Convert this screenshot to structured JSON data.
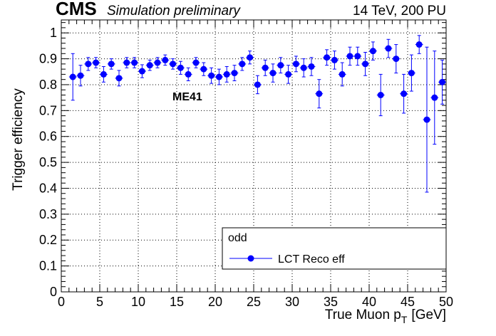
{
  "header": {
    "experiment": "CMS",
    "extra_text": "Simulation preliminary",
    "lumi_text": "14 TeV, 200 PU"
  },
  "annotation": "ME41",
  "legend": {
    "header": "odd",
    "entries": [
      "LCT Reco eff"
    ]
  },
  "colors": {
    "series": "#0000ff",
    "grid": "#000000",
    "frame": "#000000"
  },
  "chart_data": {
    "type": "scatter",
    "xlabel_main": "True Muon p",
    "xlabel_sub": "T",
    "xlabel_unit": "[GeV]",
    "ylabel": "Trigger efficiency",
    "xlim": [
      0,
      50
    ],
    "ylim": [
      0,
      1.05
    ],
    "xticks": [
      0,
      5,
      10,
      15,
      20,
      25,
      30,
      35,
      40,
      45,
      50
    ],
    "yticks": [
      0,
      0.1,
      0.2,
      0.3,
      0.4,
      0.5,
      0.6,
      0.7,
      0.8,
      0.9,
      1
    ],
    "ytick_labels": [
      "0",
      "0.1",
      "0.2",
      "0.3",
      "0.4",
      "0.5",
      "0.6",
      "0.7",
      "0.8",
      "0.9",
      "1"
    ],
    "grid": true,
    "legend_position": "bottom-right",
    "series": [
      {
        "name": "LCT Reco eff",
        "marker": "circle",
        "x": [
          1.5,
          2.5,
          3.5,
          4.5,
          5.5,
          6.5,
          7.5,
          8.5,
          9.5,
          10.5,
          11.5,
          12.5,
          13.5,
          14.5,
          15.5,
          16.5,
          17.5,
          18.5,
          19.5,
          20.5,
          21.5,
          22.5,
          23.5,
          24.5,
          25.5,
          26.5,
          27.5,
          28.5,
          29.5,
          30.5,
          31.5,
          32.5,
          33.5,
          34.5,
          35.5,
          36.5,
          37.5,
          38.5,
          39.5,
          40.5,
          41.5,
          42.5,
          43.5,
          44.5,
          45.5,
          46.5,
          47.5,
          48.5,
          49.5
        ],
        "y": [
          0.83,
          0.835,
          0.88,
          0.885,
          0.84,
          0.88,
          0.825,
          0.885,
          0.885,
          0.852,
          0.875,
          0.885,
          0.895,
          0.88,
          0.865,
          0.84,
          0.885,
          0.86,
          0.835,
          0.83,
          0.84,
          0.845,
          0.88,
          0.905,
          0.8,
          0.865,
          0.845,
          0.875,
          0.84,
          0.88,
          0.865,
          0.87,
          0.765,
          0.905,
          0.895,
          0.84,
          0.91,
          0.91,
          0.88,
          0.93,
          0.76,
          0.94,
          0.9,
          0.765,
          0.845,
          0.955,
          0.665,
          0.75,
          0.81
        ],
        "err": [
          0.09,
          0.04,
          0.025,
          0.02,
          0.03,
          0.02,
          0.03,
          0.02,
          0.02,
          0.025,
          0.02,
          0.02,
          0.02,
          0.02,
          0.025,
          0.025,
          0.02,
          0.025,
          0.03,
          0.03,
          0.03,
          0.03,
          0.025,
          0.025,
          0.035,
          0.03,
          0.035,
          0.03,
          0.035,
          0.03,
          0.035,
          0.035,
          0.055,
          0.03,
          0.035,
          0.045,
          0.035,
          0.035,
          0.045,
          0.035,
          0.08,
          0.035,
          0.055,
          0.075,
          0.07,
          0.035,
          0.28,
          0.18,
          0.085
        ]
      }
    ]
  }
}
